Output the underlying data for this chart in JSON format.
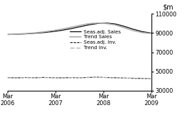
{
  "title": "",
  "ylim": [
    30000,
    110000
  ],
  "yticks": [
    30000,
    50000,
    70000,
    90000,
    110000
  ],
  "xtick_labels": [
    "Mar\n2006",
    "Mar\n2007",
    "Mar\n2008",
    "Mar\n2009"
  ],
  "seas_adj_sales": [
    88500,
    88800,
    89200,
    89800,
    90500,
    91500,
    92800,
    94500,
    96500,
    98500,
    100000,
    100500,
    99500,
    97000,
    94000,
    91500,
    90000
  ],
  "trend_sales": [
    88700,
    89000,
    89500,
    90200,
    91200,
    92500,
    94000,
    96000,
    98000,
    99800,
    100500,
    100000,
    98500,
    95500,
    92500,
    90500,
    89500
  ],
  "seas_adj_inv": [
    43500,
    43200,
    43600,
    43300,
    43700,
    43400,
    43200,
    43500,
    43300,
    43700,
    43900,
    43600,
    43300,
    43000,
    42700,
    42500,
    42200
  ],
  "trend_inv": [
    43400,
    43400,
    43500,
    43400,
    43500,
    43400,
    43300,
    43500,
    43400,
    43600,
    43700,
    43500,
    43300,
    43100,
    42900,
    42600,
    42300
  ],
  "color_black": "#000000",
  "color_gray": "#aaaaaa",
  "legend_labels": [
    "Seas.adj. Sales",
    "Trend Sales",
    "Seas.adj. Inv.",
    "Trend Inv."
  ],
  "background_color": "#ffffff",
  "figsize": [
    2.83,
    1.7
  ],
  "dpi": 100
}
